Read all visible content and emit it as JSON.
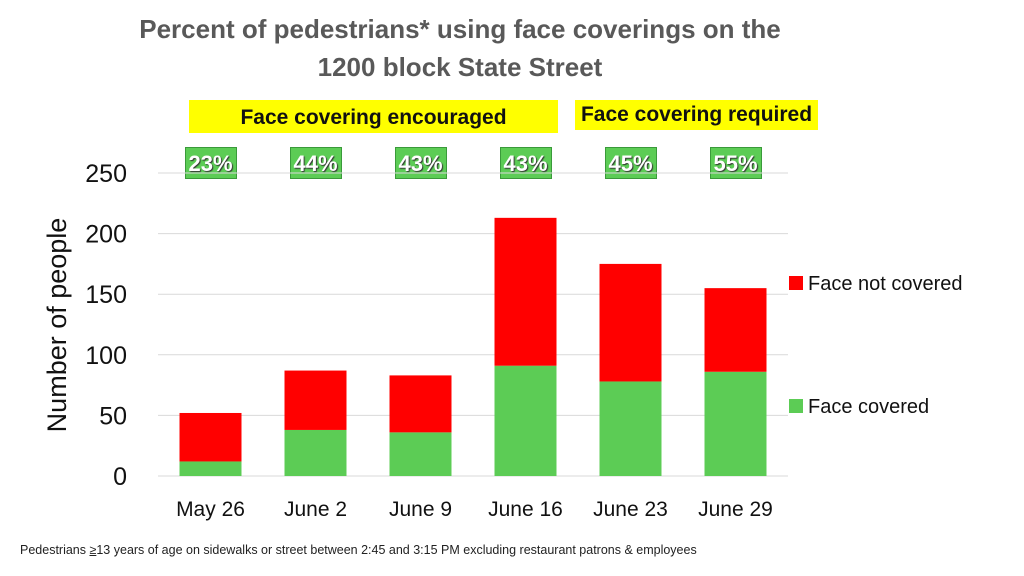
{
  "chart_data": {
    "type": "bar",
    "stacked": true,
    "title": "Percent of pedestrians* using face coverings on the 1200 block State Street",
    "title_lines": [
      "Percent of pedestrians* using face coverings on the",
      "1200 block State Street"
    ],
    "xlabel": "",
    "ylabel": "Number of people",
    "ylim": [
      0,
      250
    ],
    "yticks": [
      0,
      50,
      100,
      150,
      200,
      250
    ],
    "grid": true,
    "legend_position": "right",
    "categories": [
      "May 26",
      "June 2",
      "June 9",
      "June 16",
      "June 23",
      "June 29"
    ],
    "series": [
      {
        "name": "Face covered",
        "color": "#5ccc55",
        "values": [
          12,
          38,
          36,
          91,
          78,
          86
        ]
      },
      {
        "name": "Face not covered",
        "color": "#ff0000",
        "values": [
          40,
          49,
          47,
          122,
          97,
          69
        ]
      }
    ],
    "percent_labels": [
      "23%",
      "44%",
      "43%",
      "43%",
      "45%",
      "55%"
    ],
    "annotations": [
      "Face covering encouraged",
      "Face covering required"
    ],
    "footnote_prefix": "Pedestrians ",
    "footnote_ge": "≥",
    "footnote_rest": "13 years of age on sidewalks or street between  2:45 and 3:15 PM excluding restaurant patrons & employees"
  }
}
